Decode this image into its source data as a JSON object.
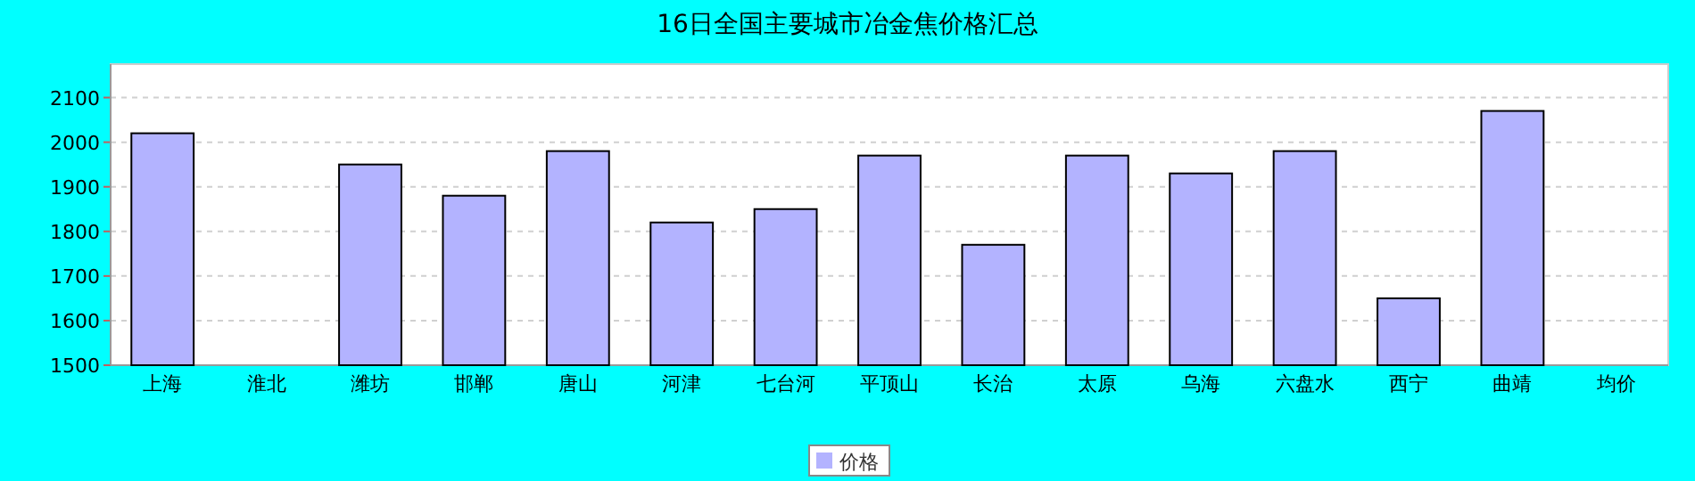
{
  "chart_data": {
    "type": "bar",
    "title": "16日全国主要城市冶金焦价格汇总",
    "categories": [
      "上海",
      "淮北",
      "潍坊",
      "邯郸",
      "唐山",
      "河津",
      "七台河",
      "平顶山",
      "长治",
      "太原",
      "乌海",
      "六盘水",
      "西宁",
      "曲靖",
      "均价"
    ],
    "series": [
      {
        "name": "价格",
        "color": "#b3b3ff",
        "values": [
          2020,
          null,
          1950,
          1880,
          1980,
          1820,
          1850,
          1970,
          1770,
          1970,
          1930,
          1980,
          1650,
          2070,
          null
        ]
      }
    ],
    "ylim": [
      1500,
      2175
    ],
    "yticks": [
      1500,
      1600,
      1700,
      1800,
      1900,
      2000,
      2100
    ],
    "grid": "y",
    "legend": "bottom"
  }
}
